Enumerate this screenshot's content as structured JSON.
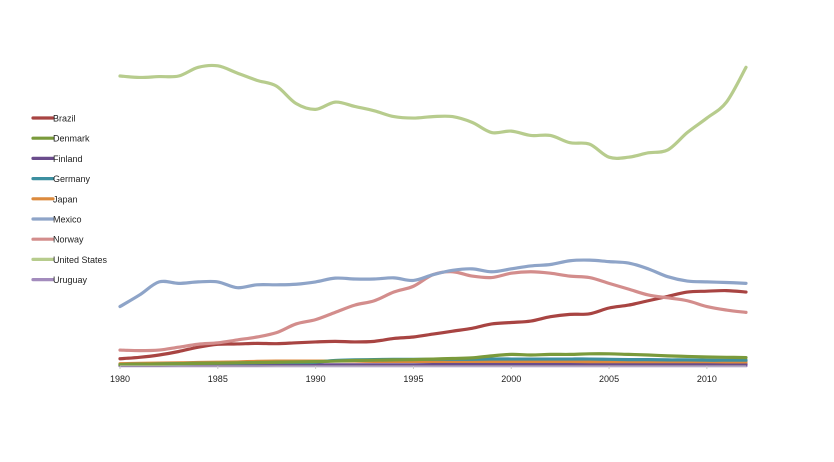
{
  "chart_data": {
    "type": "line",
    "title": "",
    "xlabel": "",
    "ylabel": "",
    "x": [
      1980,
      1981,
      1982,
      1983,
      1984,
      1985,
      1986,
      1987,
      1988,
      1989,
      1990,
      1991,
      1992,
      1993,
      1994,
      1995,
      1996,
      1997,
      1998,
      1999,
      2000,
      2001,
      2002,
      2003,
      2004,
      2005,
      2006,
      2007,
      2008,
      2009,
      2010,
      2011,
      2012
    ],
    "xlim": [
      1980,
      2012
    ],
    "ylim": [
      0,
      100
    ],
    "x_ticks": [
      "1980",
      "1985",
      "1990",
      "1995",
      "2000",
      "2005",
      "2010"
    ],
    "grid": false,
    "legend_position": "left",
    "series": [
      {
        "name": "Brazil",
        "color": "#a84442",
        "values": [
          2.5,
          3,
          3.8,
          5,
          6.5,
          7.5,
          7.6,
          7.8,
          7.7,
          8,
          8.3,
          8.5,
          8.3,
          8.5,
          9.5,
          10,
          11,
          12,
          13,
          14.5,
          15,
          15.5,
          17,
          17.8,
          18,
          20,
          21,
          22.5,
          24,
          25.5,
          25.8,
          26,
          25.5
        ]
      },
      {
        "name": "Denmark",
        "color": "#7a9a3b",
        "values": [
          0.5,
          0.6,
          0.7,
          0.8,
          0.9,
          1,
          1.1,
          1.2,
          1.3,
          1.4,
          1.5,
          1.7,
          1.9,
          2,
          2.1,
          2.2,
          2.4,
          2.6,
          2.8,
          3.5,
          4,
          3.8,
          4,
          4,
          4.2,
          4.2,
          4,
          3.8,
          3.5,
          3.3,
          3.1,
          3,
          2.9
        ]
      },
      {
        "name": "Finland",
        "color": "#6a4c8c",
        "values": [
          0.2,
          0.2,
          0.2,
          0.3,
          0.3,
          0.3,
          0.3,
          0.3,
          0.4,
          0.4,
          0.4,
          0.4,
          0.4,
          0.4,
          0.4,
          0.4,
          0.5,
          0.5,
          0.5,
          0.5,
          0.5,
          0.5,
          0.5,
          0.6,
          0.6,
          0.6,
          0.6,
          0.6,
          0.6,
          0.6,
          0.6,
          0.6,
          0.6
        ]
      },
      {
        "name": "Germany",
        "color": "#3c8fa0",
        "values": [
          0.5,
          0.6,
          0.7,
          0.8,
          0.9,
          1,
          1,
          1.1,
          1.2,
          1.2,
          1.3,
          1.9,
          2.1,
          2.2,
          2.3,
          2.3,
          2.3,
          2.3,
          2.3,
          2.4,
          2.4,
          2.4,
          2.4,
          2.4,
          2.4,
          2.3,
          2.2,
          2.2,
          2.1,
          2.1,
          2,
          2,
          2
        ]
      },
      {
        "name": "Japan",
        "color": "#dc8a3d",
        "values": [
          0.8,
          0.9,
          1,
          1.1,
          1.2,
          1.3,
          1.4,
          1.6,
          1.7,
          1.7,
          1.7,
          1.7,
          1.7,
          1.6,
          1.6,
          1.6,
          1.6,
          1.6,
          1.6,
          1.6,
          1.6,
          1.6,
          1.6,
          1.6,
          1.5,
          1.5,
          1.5,
          1.5,
          1.5,
          1.5,
          1.5,
          1.4,
          1.4
        ]
      },
      {
        "name": "Mexico",
        "color": "#8ea4c8",
        "values": [
          20.5,
          24.5,
          29,
          28.5,
          29,
          29,
          27,
          28,
          28,
          28.2,
          29,
          30.3,
          30,
          30,
          30.4,
          29.5,
          31.5,
          33,
          33.5,
          32.5,
          33.5,
          34.5,
          35,
          36.3,
          36.5,
          36,
          35.5,
          33.5,
          30.8,
          29.3,
          29,
          28.8,
          28.5
        ]
      },
      {
        "name": "Norway",
        "color": "#d38d8c",
        "values": [
          5.5,
          5.3,
          5.5,
          6.5,
          7.5,
          8,
          9,
          10,
          11.5,
          14.5,
          16,
          18.5,
          21,
          22.5,
          25.5,
          27.5,
          31.5,
          32.5,
          31,
          30.5,
          32,
          32.5,
          32,
          31,
          30.5,
          28.5,
          26.5,
          24.5,
          23.5,
          22.5,
          20.5,
          19.3,
          18.5
        ]
      },
      {
        "name": "United States",
        "color": "#b7cc8d",
        "values": [
          100,
          99.5,
          99.8,
          100,
          103,
          103.5,
          101,
          98.5,
          96.5,
          90.5,
          88.5,
          91,
          89.5,
          88,
          86,
          85.5,
          86,
          86,
          84,
          80.5,
          81,
          79.5,
          79.5,
          77,
          76.5,
          72,
          72,
          73.5,
          74.5,
          80.5,
          85.5,
          91,
          103
        ]
      },
      {
        "name": "Uruguay",
        "color": "#a38cbd",
        "values": [
          0.1,
          0.1,
          0.1,
          0.1,
          0.1,
          0.1,
          0.1,
          0.1,
          0.1,
          0.1,
          0.1,
          0.1,
          0.1,
          0.1,
          0.1,
          0.1,
          0.1,
          0.1,
          0.1,
          0.1,
          0.1,
          0.1,
          0.1,
          0.1,
          0.1,
          0.1,
          0.1,
          0.1,
          0.1,
          0.1,
          0.1,
          0.1,
          0.1
        ]
      }
    ]
  }
}
